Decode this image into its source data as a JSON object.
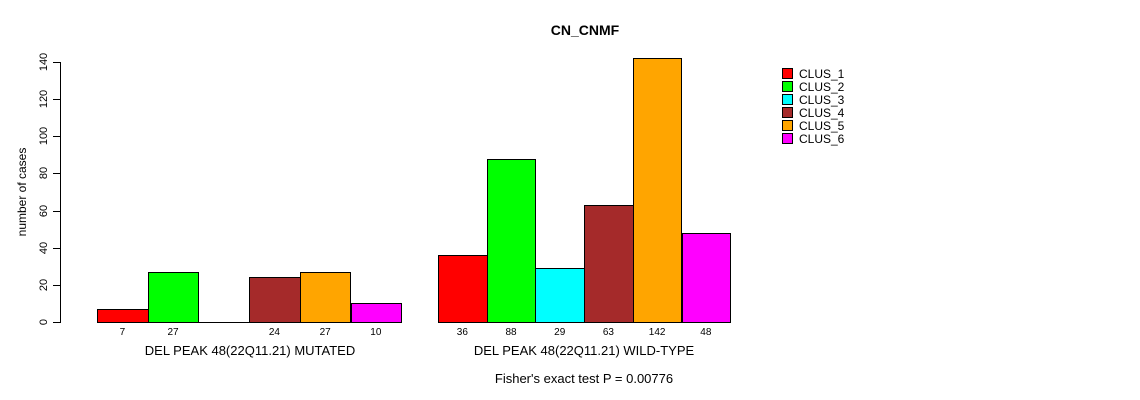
{
  "chart_data": {
    "type": "bar",
    "title": "CN_CNMF",
    "ylabel": "number of cases",
    "ylim": [
      0,
      140
    ],
    "yticks": [
      0,
      20,
      40,
      60,
      80,
      100,
      120,
      140
    ],
    "grid": false,
    "legend_position": "top-right",
    "clusters": [
      {
        "name": "CLUS_1",
        "color": "#FF0000"
      },
      {
        "name": "CLUS_2",
        "color": "#00FF00"
      },
      {
        "name": "CLUS_3",
        "color": "#00FFFF"
      },
      {
        "name": "CLUS_4",
        "color": "#A52A2A"
      },
      {
        "name": "CLUS_5",
        "color": "#FFA500"
      },
      {
        "name": "CLUS_6",
        "color": "#FF00FF"
      }
    ],
    "groups": [
      {
        "label": "DEL PEAK 48(22Q11.21) MUTATED",
        "values": [
          7,
          27,
          0,
          24,
          27,
          10
        ]
      },
      {
        "label": "DEL PEAK 48(22Q11.21) WILD-TYPE",
        "values": [
          36,
          88,
          29,
          63,
          142,
          48
        ]
      }
    ],
    "annotation": "Fisher's exact test P = 0.00776"
  }
}
